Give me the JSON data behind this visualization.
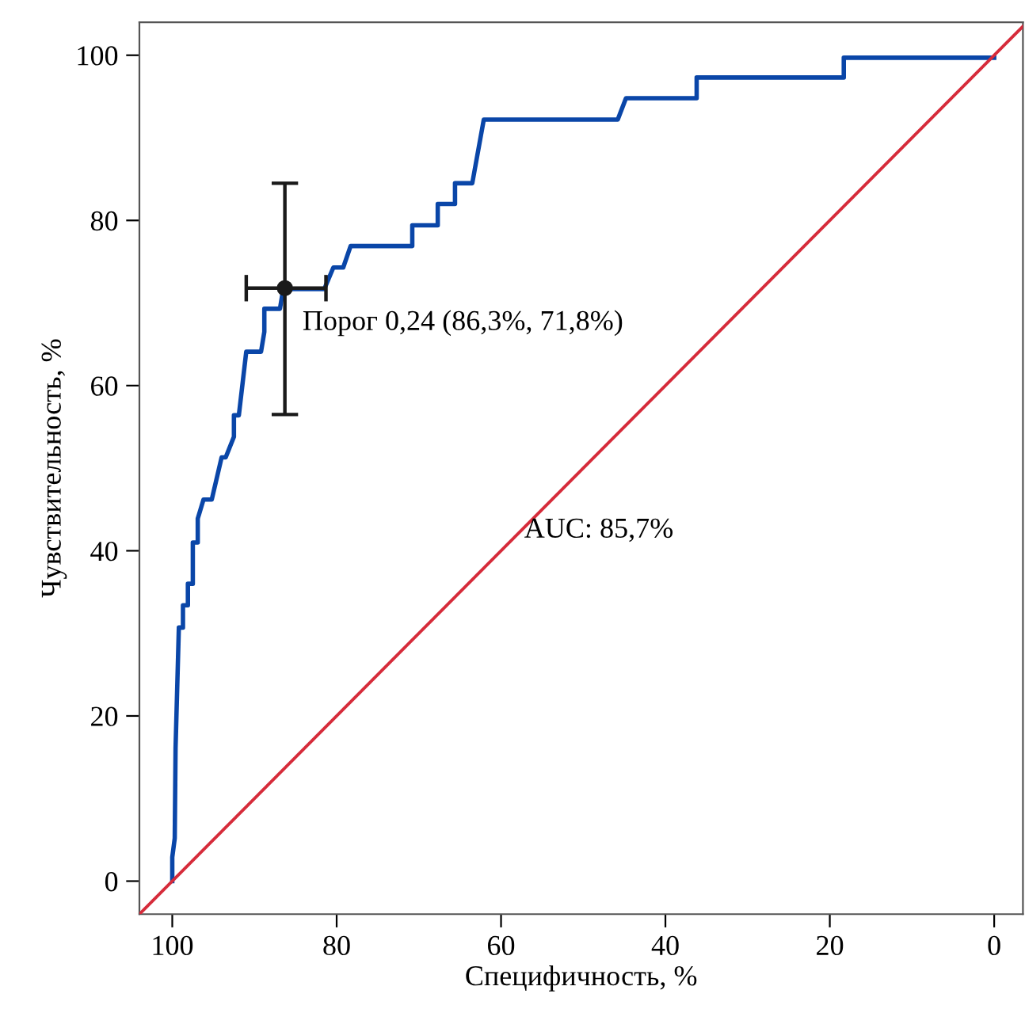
{
  "chart_data": {
    "type": "line",
    "xlabel": "Специфичность, %",
    "ylabel": "Чувствительность, %",
    "xlim": [
      104,
      -3.5
    ],
    "ylim": [
      -4,
      104
    ],
    "xticks": [
      100,
      80,
      60,
      40,
      20,
      0
    ],
    "yticks": [
      0,
      20,
      40,
      60,
      80,
      100
    ],
    "grid": false,
    "line_style": "solid",
    "series": [
      {
        "color": "#0a46a8",
        "x": [
          100,
          100,
          99.7,
          99.6,
          99.2,
          98.7,
          98.7,
          98.1,
          98.1,
          97.5,
          97.5,
          96.9,
          96.9,
          96.2,
          95.2,
          94.0,
          93.5,
          92.5,
          92.5,
          91.9,
          91.0,
          89.2,
          88.8,
          88.8,
          86.9,
          86.5,
          81.5,
          80.4,
          79.2,
          78.3,
          70.8,
          70.8,
          67.7,
          67.7,
          65.6,
          65.6,
          63.5,
          62.1,
          45.8,
          44.8,
          36.2,
          36.2,
          18.3,
          18.3,
          0
        ],
        "values": [
          0,
          2.9,
          5.2,
          16.1,
          30.7,
          30.7,
          33.4,
          33.4,
          36,
          36,
          41,
          41,
          43.9,
          46.2,
          46.2,
          51.3,
          51.3,
          53.8,
          56.4,
          56.4,
          64.1,
          64.1,
          66.5,
          69.3,
          69.3,
          71.7,
          71.7,
          74.3,
          74.3,
          76.9,
          76.9,
          79.4,
          79.4,
          82,
          82,
          84.5,
          84.5,
          92.2,
          92.2,
          94.8,
          94.8,
          97.3,
          97.3,
          99.7,
          99.7
        ]
      },
      {
        "color": "#d62b3a",
        "x": [
          104,
          -3.5
        ],
        "values": [
          -4,
          103.5
        ]
      },
      {
        "type": "scatter",
        "color": "#1a1a1a",
        "marker": "circle",
        "x": [
          86.3
        ],
        "values": [
          71.8
        ],
        "errors": [
          [
            56.5,
            84.5
          ]
        ],
        "xerrors": [
          [
            81.3,
            91.0
          ]
        ]
      }
    ],
    "annotations": [
      {
        "text": "Порог 0,24 (86,3%, 71,8%)",
        "x": 86.3,
        "y": 71.8
      },
      "AUC: 85,7%"
    ]
  }
}
